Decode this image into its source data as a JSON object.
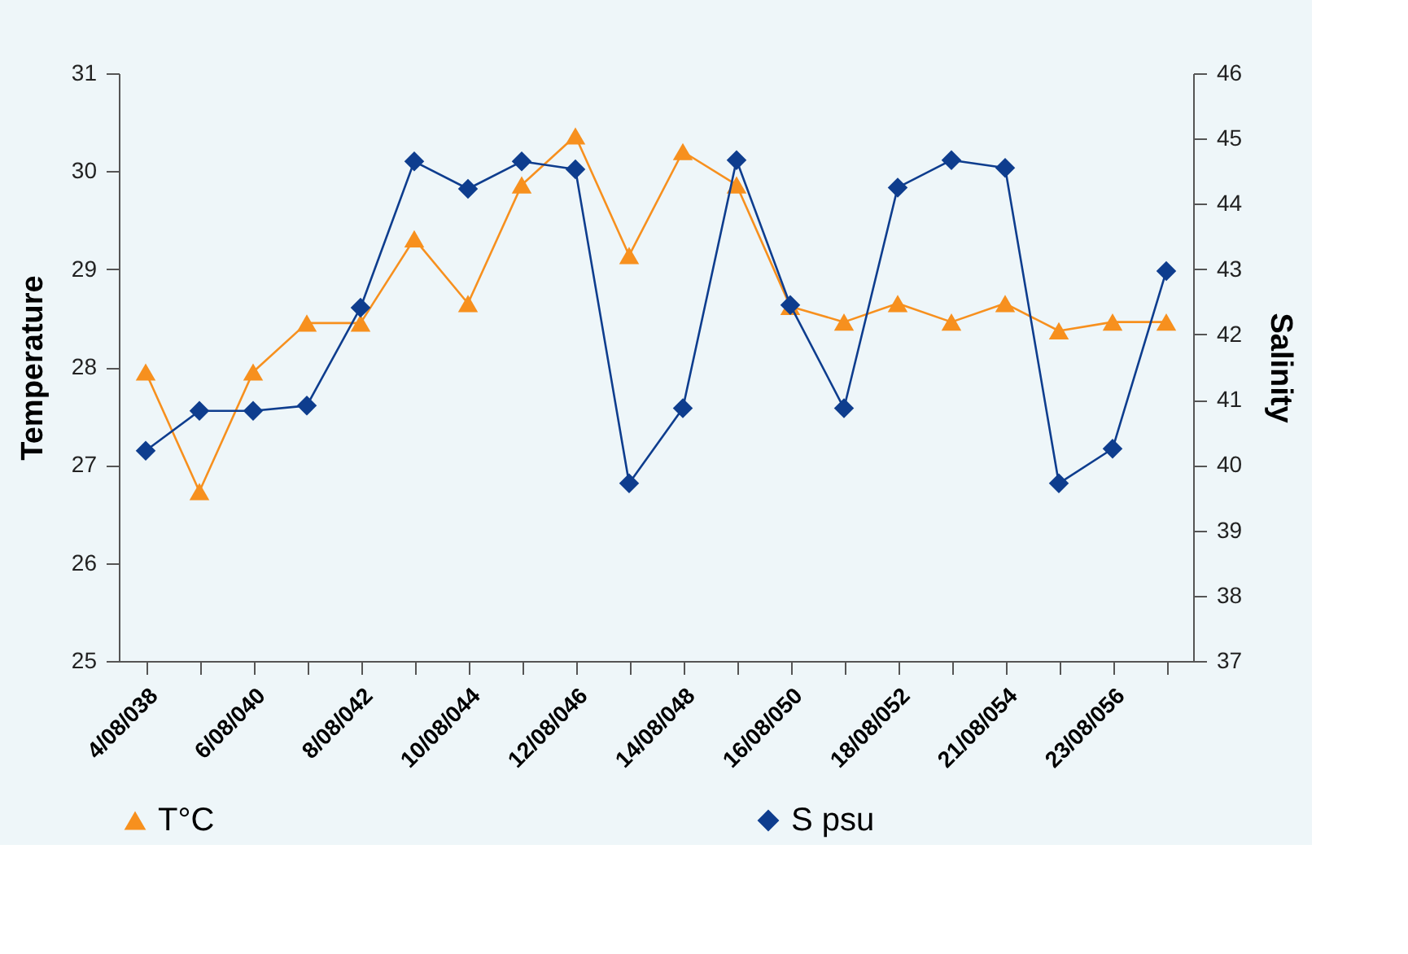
{
  "chart_data": {
    "type": "line",
    "ylabel": "Temperature",
    "y2label": "Salinity",
    "categories": [
      "4/08/038",
      null,
      "6/08/040",
      null,
      "8/08/042",
      null,
      "10/08/044",
      null,
      "12/08/046",
      null,
      "14/08/048",
      null,
      "16/08/050",
      null,
      "18/08/052",
      null,
      "21/08/054",
      null,
      "23/08/056",
      null
    ],
    "series": [
      {
        "name": "T°C",
        "color": "#f7901e",
        "marker": "triangle",
        "values": [
          27.95,
          26.73,
          27.95,
          28.45,
          28.45,
          29.31,
          28.65,
          29.86,
          30.36,
          29.14,
          30.2,
          29.86,
          28.62,
          28.46,
          28.65,
          28.46,
          28.65,
          28.37,
          28.46,
          28.46
        ]
      },
      {
        "name": "S psu",
        "color": "#0e3d8e",
        "marker": "diamond",
        "axis": "y2",
        "values": [
          40.22,
          40.83,
          40.83,
          40.91,
          42.41,
          44.65,
          44.23,
          44.65,
          44.53,
          39.72,
          40.87,
          44.67,
          42.45,
          40.87,
          44.25,
          44.67,
          44.55,
          39.72,
          40.25,
          42.97
        ]
      }
    ],
    "ylim": [
      25,
      31
    ],
    "yticks": [
      25,
      26,
      27,
      28,
      29,
      30,
      31
    ],
    "y2lim": [
      37,
      46
    ],
    "y2ticks": [
      37,
      38,
      39,
      40,
      41,
      42,
      43,
      44,
      45,
      46
    ],
    "grid": false,
    "legend": "bottom",
    "line_style": "solid"
  }
}
